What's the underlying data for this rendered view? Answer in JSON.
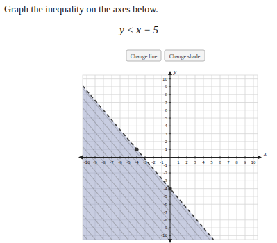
{
  "chart_data": {
    "type": "line",
    "title": "Graph the inequality on the axes below.",
    "subtitle": "y < x − 5",
    "buttons": [
      "Change line",
      "Change shade"
    ],
    "x_label": "x",
    "y_label": "y",
    "xlim": [
      -10.5,
      10.5
    ],
    "ylim": [
      -10.5,
      10.5
    ],
    "xticks": [
      -10,
      -9,
      -8,
      -7,
      -6,
      -5,
      -4,
      -3,
      -2,
      -1,
      1,
      2,
      3,
      4,
      5,
      6,
      7,
      8,
      9,
      10
    ],
    "yticks": [
      -10,
      -9,
      -8,
      -7,
      -6,
      -5,
      -4,
      -3,
      -2,
      -1,
      1,
      2,
      3,
      4,
      5,
      6,
      7,
      8,
      9,
      10
    ],
    "grid": true,
    "series": [
      {
        "type": "area",
        "color": "#9aa4c8",
        "line_style": "dashed",
        "x": [
          -10.5,
          5.2
        ],
        "values": [
          9.125,
          -10.5
        ]
      },
      {
        "type": "scatter",
        "color": "#333333",
        "marker": "circle",
        "x": [
          -4,
          0
        ],
        "values": [
          1,
          -4
        ]
      }
    ]
  }
}
